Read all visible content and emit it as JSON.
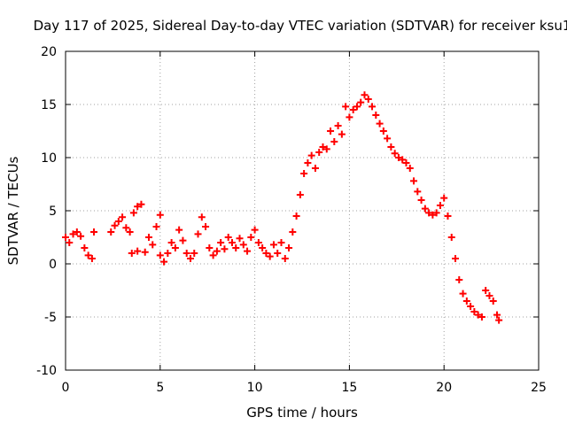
{
  "chart_data": {
    "type": "scatter",
    "title": "Day 117 of 2025, Sidereal Day-to-day VTEC variation (SDTVAR) for receiver ksu1",
    "xlabel": "GPS time / hours",
    "ylabel": "SDTVAR / TECUs",
    "xlim": [
      0,
      25
    ],
    "ylim": [
      -10,
      20
    ],
    "xticks": [
      "0",
      "5",
      "10",
      "15",
      "20",
      "25"
    ],
    "yticks": [
      "-10",
      "-5",
      "0",
      "5",
      "10",
      "15",
      "20"
    ],
    "grid": true,
    "marker": "+",
    "color": "#ff0000",
    "series": [
      {
        "name": "SDTVAR",
        "points": [
          [
            0.0,
            2.5
          ],
          [
            0.2,
            2.0
          ],
          [
            0.4,
            2.8
          ],
          [
            0.6,
            3.0
          ],
          [
            0.8,
            2.6
          ],
          [
            1.0,
            1.5
          ],
          [
            1.2,
            0.8
          ],
          [
            1.4,
            0.5
          ],
          [
            1.5,
            3.0
          ],
          [
            2.4,
            3.0
          ],
          [
            2.6,
            3.6
          ],
          [
            2.8,
            4.0
          ],
          [
            3.0,
            4.4
          ],
          [
            3.2,
            3.4
          ],
          [
            3.4,
            3.0
          ],
          [
            3.6,
            4.8
          ],
          [
            3.8,
            5.4
          ],
          [
            4.0,
            5.6
          ],
          [
            3.5,
            1.0
          ],
          [
            3.8,
            1.2
          ],
          [
            4.2,
            1.1
          ],
          [
            4.4,
            2.5
          ],
          [
            4.6,
            1.8
          ],
          [
            4.8,
            3.5
          ],
          [
            5.0,
            4.6
          ],
          [
            5.0,
            0.8
          ],
          [
            5.2,
            0.2
          ],
          [
            5.4,
            1.0
          ],
          [
            5.6,
            2.0
          ],
          [
            5.8,
            1.5
          ],
          [
            6.0,
            3.2
          ],
          [
            6.2,
            2.2
          ],
          [
            6.4,
            1.0
          ],
          [
            6.6,
            0.5
          ],
          [
            6.8,
            1.0
          ],
          [
            7.0,
            2.8
          ],
          [
            7.2,
            4.4
          ],
          [
            7.4,
            3.5
          ],
          [
            7.6,
            1.5
          ],
          [
            7.8,
            0.8
          ],
          [
            8.0,
            1.2
          ],
          [
            8.2,
            2.0
          ],
          [
            8.4,
            1.4
          ],
          [
            8.6,
            2.5
          ],
          [
            8.8,
            2.0
          ],
          [
            9.0,
            1.5
          ],
          [
            9.2,
            2.4
          ],
          [
            9.4,
            1.8
          ],
          [
            9.6,
            1.2
          ],
          [
            9.8,
            2.5
          ],
          [
            10.0,
            3.2
          ],
          [
            10.2,
            2.0
          ],
          [
            10.4,
            1.5
          ],
          [
            10.6,
            1.0
          ],
          [
            10.8,
            0.7
          ],
          [
            11.0,
            1.8
          ],
          [
            11.2,
            1.0
          ],
          [
            11.4,
            2.0
          ],
          [
            11.6,
            0.5
          ],
          [
            11.8,
            1.5
          ],
          [
            12.0,
            3.0
          ],
          [
            12.2,
            4.5
          ],
          [
            12.4,
            6.5
          ],
          [
            12.6,
            8.5
          ],
          [
            12.8,
            9.5
          ],
          [
            13.0,
            10.2
          ],
          [
            13.2,
            9.0
          ],
          [
            13.4,
            10.5
          ],
          [
            13.6,
            11.0
          ],
          [
            13.8,
            10.8
          ],
          [
            14.0,
            12.5
          ],
          [
            14.2,
            11.5
          ],
          [
            14.4,
            13.0
          ],
          [
            14.6,
            12.2
          ],
          [
            14.8,
            14.8
          ],
          [
            15.0,
            13.8
          ],
          [
            15.2,
            14.5
          ],
          [
            15.4,
            14.8
          ],
          [
            15.6,
            15.2
          ],
          [
            15.8,
            15.9
          ],
          [
            16.0,
            15.5
          ],
          [
            16.2,
            14.8
          ],
          [
            16.4,
            14.0
          ],
          [
            16.6,
            13.2
          ],
          [
            16.8,
            12.5
          ],
          [
            17.0,
            11.8
          ],
          [
            17.2,
            11.0
          ],
          [
            17.4,
            10.4
          ],
          [
            17.6,
            10.0
          ],
          [
            17.8,
            9.8
          ],
          [
            18.0,
            9.5
          ],
          [
            18.2,
            9.0
          ],
          [
            18.4,
            7.8
          ],
          [
            18.6,
            6.8
          ],
          [
            18.8,
            6.0
          ],
          [
            19.0,
            5.2
          ],
          [
            19.2,
            4.8
          ],
          [
            19.4,
            4.6
          ],
          [
            19.6,
            4.8
          ],
          [
            19.8,
            5.5
          ],
          [
            20.0,
            6.2
          ],
          [
            20.2,
            4.5
          ],
          [
            20.4,
            2.5
          ],
          [
            20.6,
            0.5
          ],
          [
            20.8,
            -1.5
          ],
          [
            21.0,
            -2.8
          ],
          [
            21.2,
            -3.5
          ],
          [
            21.4,
            -4.0
          ],
          [
            21.6,
            -4.5
          ],
          [
            21.8,
            -4.8
          ],
          [
            22.0,
            -5.0
          ],
          [
            22.2,
            -2.5
          ],
          [
            22.4,
            -3.0
          ],
          [
            22.6,
            -3.5
          ],
          [
            22.8,
            -4.8
          ],
          [
            22.9,
            -5.3
          ]
        ]
      }
    ]
  }
}
